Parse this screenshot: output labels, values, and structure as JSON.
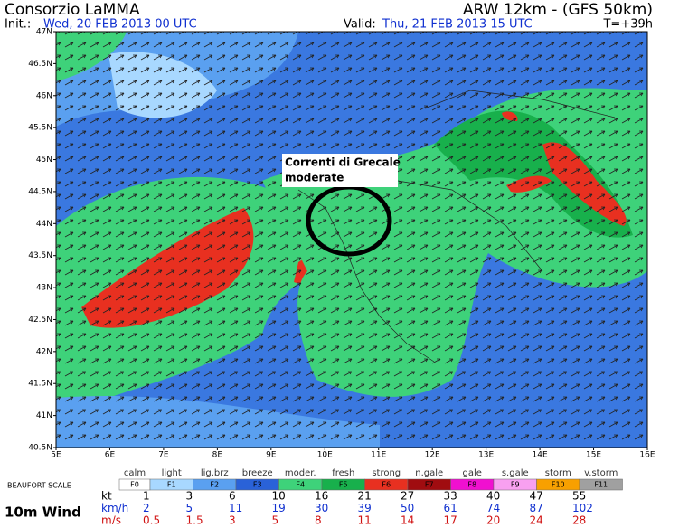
{
  "header": {
    "title": "Consorzio LaMMA",
    "model": "ARW 12km - (GFS 50km)",
    "init_label": "Init.:",
    "init": "Wed, 20 FEB 2013 00 UTC",
    "valid_label": "Valid:",
    "valid": "Thu, 21 FEB 2013 15 UTC",
    "forecast": "T=+39h"
  },
  "map": {
    "lat_labels": [
      "47N",
      "46.5N",
      "46N",
      "45.5N",
      "45N",
      "44.5N",
      "44N",
      "43.5N",
      "43N",
      "42.5N",
      "42N",
      "41.5N",
      "41N",
      "40.5N"
    ],
    "lon_labels": [
      "5E",
      "6E",
      "7E",
      "8E",
      "9E",
      "10E",
      "11E",
      "12E",
      "13E",
      "14E",
      "15E",
      "16E"
    ],
    "annotation": [
      "Correnti di Grecale",
      "moderate"
    ]
  },
  "legend": {
    "scale_title": "BEAUFORT SCALE",
    "field": "10m Wind",
    "classes": [
      {
        "name": "calm",
        "code": "F0",
        "color": "#ffffff"
      },
      {
        "name": "light",
        "code": "F1",
        "color": "#a8d8ff"
      },
      {
        "name": "lig.brz",
        "code": "F2",
        "color": "#5aa0f0"
      },
      {
        "name": "breeze",
        "code": "F3",
        "color": "#2a62d8"
      },
      {
        "name": "moder.",
        "code": "F4",
        "color": "#3ed27a"
      },
      {
        "name": "fresh",
        "code": "F5",
        "color": "#18b04c"
      },
      {
        "name": "strong",
        "code": "F6",
        "color": "#e83020"
      },
      {
        "name": "n.gale",
        "code": "F7",
        "color": "#a00c10"
      },
      {
        "name": "gale",
        "code": "F8",
        "color": "#f010d0"
      },
      {
        "name": "s.gale",
        "code": "F9",
        "color": "#f8a0f0"
      },
      {
        "name": "storm",
        "code": "F10",
        "color": "#f8a000"
      },
      {
        "name": "v.storm",
        "code": "F11",
        "color": "#a0a0a0"
      }
    ],
    "units": [
      {
        "unit": "kt",
        "color": "#000000",
        "values": [
          1,
          3,
          6,
          10,
          16,
          21,
          27,
          33,
          40,
          47,
          55
        ]
      },
      {
        "unit": "km/h",
        "color": "#1030d0",
        "values": [
          2,
          5,
          11,
          19,
          30,
          39,
          50,
          61,
          74,
          87,
          102
        ]
      },
      {
        "unit": "m/s",
        "color": "#d01010",
        "values": [
          0.5,
          1.5,
          3,
          5,
          8,
          11,
          14,
          17,
          20,
          24,
          28
        ]
      }
    ]
  }
}
